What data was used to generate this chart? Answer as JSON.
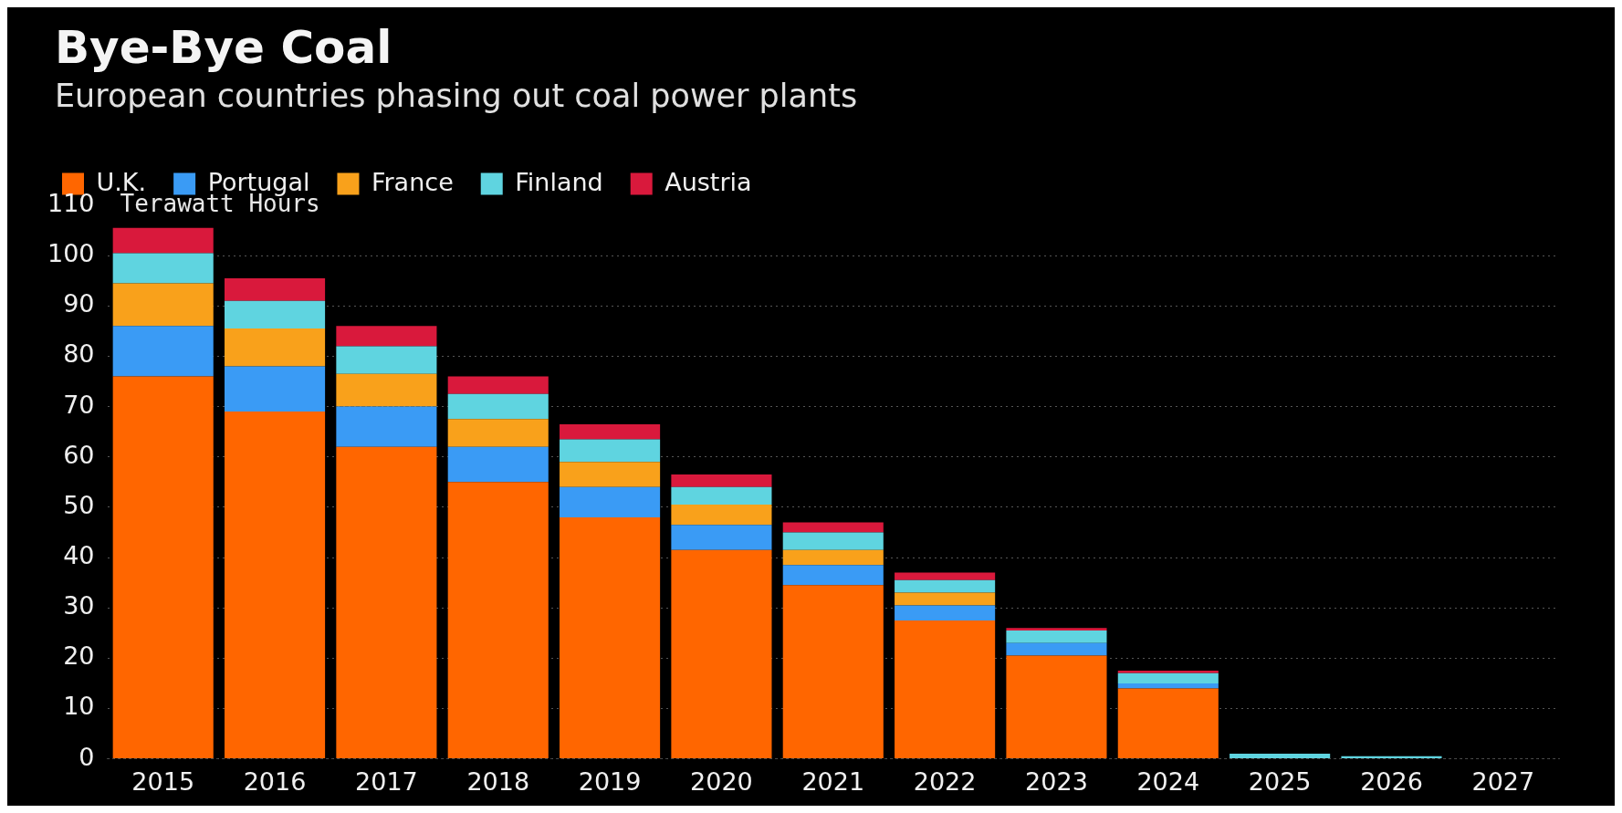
{
  "chart_data": {
    "type": "bar",
    "title": "Bye-Bye Coal",
    "subtitle": "European countries phasing out coal power plants",
    "ylabel": "Terawatt Hours",
    "categories": [
      "2015",
      "2016",
      "2017",
      "2018",
      "2019",
      "2020",
      "2021",
      "2022",
      "2023",
      "2024",
      "2025",
      "2026",
      "2027"
    ],
    "series": [
      {
        "name": "U.K.",
        "color": "#ff6600",
        "values": [
          76,
          69,
          62,
          55,
          48,
          41.5,
          34.5,
          27.5,
          20.5,
          14,
          0,
          0,
          0
        ]
      },
      {
        "name": "Portugal",
        "color": "#3a9bf5",
        "values": [
          10,
          9,
          8,
          7,
          6,
          5,
          4,
          3,
          2.5,
          1,
          0,
          0,
          0
        ]
      },
      {
        "name": "France",
        "color": "#f9a11b",
        "values": [
          8.5,
          7.5,
          6.5,
          5.5,
          5,
          4,
          3,
          2.5,
          0,
          0,
          0,
          0,
          0
        ]
      },
      {
        "name": "Finland",
        "color": "#5fd4e0",
        "values": [
          6,
          5.5,
          5.5,
          5,
          4.5,
          3.5,
          3.5,
          2.5,
          2.5,
          2,
          1,
          0.5,
          0
        ]
      },
      {
        "name": "Austria",
        "color": "#d9193c",
        "values": [
          5,
          4.5,
          4,
          3.5,
          3,
          2.5,
          2,
          1.5,
          0.5,
          0.5,
          0,
          0,
          0
        ]
      }
    ],
    "stacked": true,
    "ylim": [
      0,
      110
    ],
    "yticks": [
      0,
      10,
      20,
      30,
      40,
      50,
      60,
      70,
      80,
      90,
      100,
      110
    ],
    "grid": "y",
    "legend": "top left"
  }
}
